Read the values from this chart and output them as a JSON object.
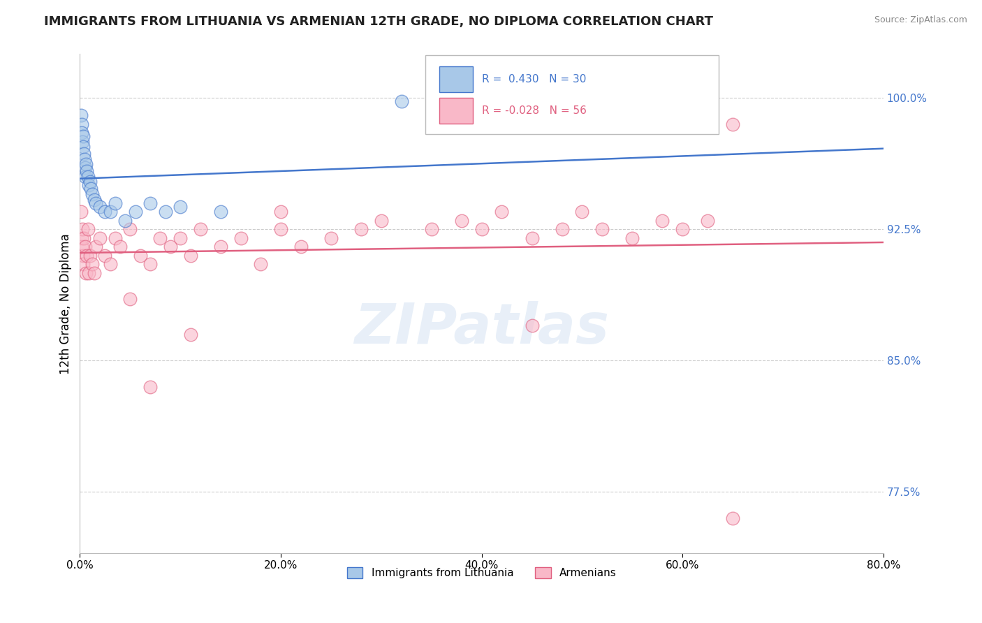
{
  "title": "IMMIGRANTS FROM LITHUANIA VS ARMENIAN 12TH GRADE, NO DIPLOMA CORRELATION CHART",
  "source": "Source: ZipAtlas.com",
  "xlabel_vals": [
    0.0,
    20.0,
    40.0,
    60.0,
    80.0
  ],
  "ylabel_vals": [
    77.5,
    85.0,
    92.5,
    100.0
  ],
  "ylabel_label": "12th Grade, No Diploma",
  "xmin": 0.0,
  "xmax": 80.0,
  "ymin": 74.0,
  "ymax": 102.5,
  "legend_blue_label": "Immigrants from Lithuania",
  "legend_pink_label": "Armenians",
  "R_blue": 0.43,
  "N_blue": 30,
  "R_pink": -0.028,
  "N_pink": 56,
  "color_blue": "#a8c8e8",
  "color_pink": "#f9b8c8",
  "line_blue": "#4477cc",
  "line_pink": "#e06080",
  "blue_scatter_x": [
    0.1,
    0.15,
    0.2,
    0.25,
    0.3,
    0.35,
    0.4,
    0.45,
    0.5,
    0.55,
    0.6,
    0.7,
    0.8,
    0.9,
    1.0,
    1.1,
    1.2,
    1.4,
    1.6,
    2.0,
    2.5,
    3.0,
    3.5,
    4.5,
    5.5,
    7.0,
    8.5,
    10.0,
    14.0,
    32.0
  ],
  "blue_scatter_y": [
    99.0,
    98.5,
    98.0,
    97.5,
    97.8,
    97.2,
    96.8,
    96.5,
    96.0,
    95.5,
    96.2,
    95.8,
    95.5,
    95.0,
    95.2,
    94.8,
    94.5,
    94.2,
    94.0,
    93.8,
    93.5,
    93.5,
    94.0,
    93.0,
    93.5,
    94.0,
    93.5,
    93.8,
    93.5,
    99.8
  ],
  "pink_scatter_x": [
    0.1,
    0.15,
    0.2,
    0.25,
    0.3,
    0.35,
    0.4,
    0.5,
    0.6,
    0.7,
    0.8,
    0.9,
    1.0,
    1.2,
    1.4,
    1.6,
    2.0,
    2.5,
    3.0,
    3.5,
    4.0,
    5.0,
    6.0,
    7.0,
    8.0,
    9.0,
    10.0,
    11.0,
    12.0,
    14.0,
    16.0,
    18.0,
    20.0,
    22.0,
    25.0,
    28.0,
    30.0,
    35.0,
    38.0,
    40.0,
    42.0,
    45.0,
    48.0,
    50.0,
    52.0,
    55.0,
    58.0,
    60.0,
    62.5,
    65.0,
    5.0,
    11.0,
    45.0,
    65.0,
    7.0,
    20.0
  ],
  "pink_scatter_y": [
    93.5,
    92.0,
    91.5,
    92.5,
    91.0,
    90.5,
    92.0,
    91.5,
    90.0,
    91.0,
    92.5,
    90.0,
    91.0,
    90.5,
    90.0,
    91.5,
    92.0,
    91.0,
    90.5,
    92.0,
    91.5,
    92.5,
    91.0,
    90.5,
    92.0,
    91.5,
    92.0,
    91.0,
    92.5,
    91.5,
    92.0,
    90.5,
    92.5,
    91.5,
    92.0,
    92.5,
    93.0,
    92.5,
    93.0,
    92.5,
    93.5,
    92.0,
    92.5,
    93.5,
    92.5,
    92.0,
    93.0,
    92.5,
    93.0,
    98.5,
    88.5,
    86.5,
    87.0,
    76.0,
    83.5,
    93.5
  ],
  "watermark_text": "ZIPatlas",
  "background_color": "#ffffff",
  "grid_color": "#cccccc",
  "title_fontsize": 13,
  "axis_tick_fontsize": 11,
  "ylabel_fontsize": 12
}
